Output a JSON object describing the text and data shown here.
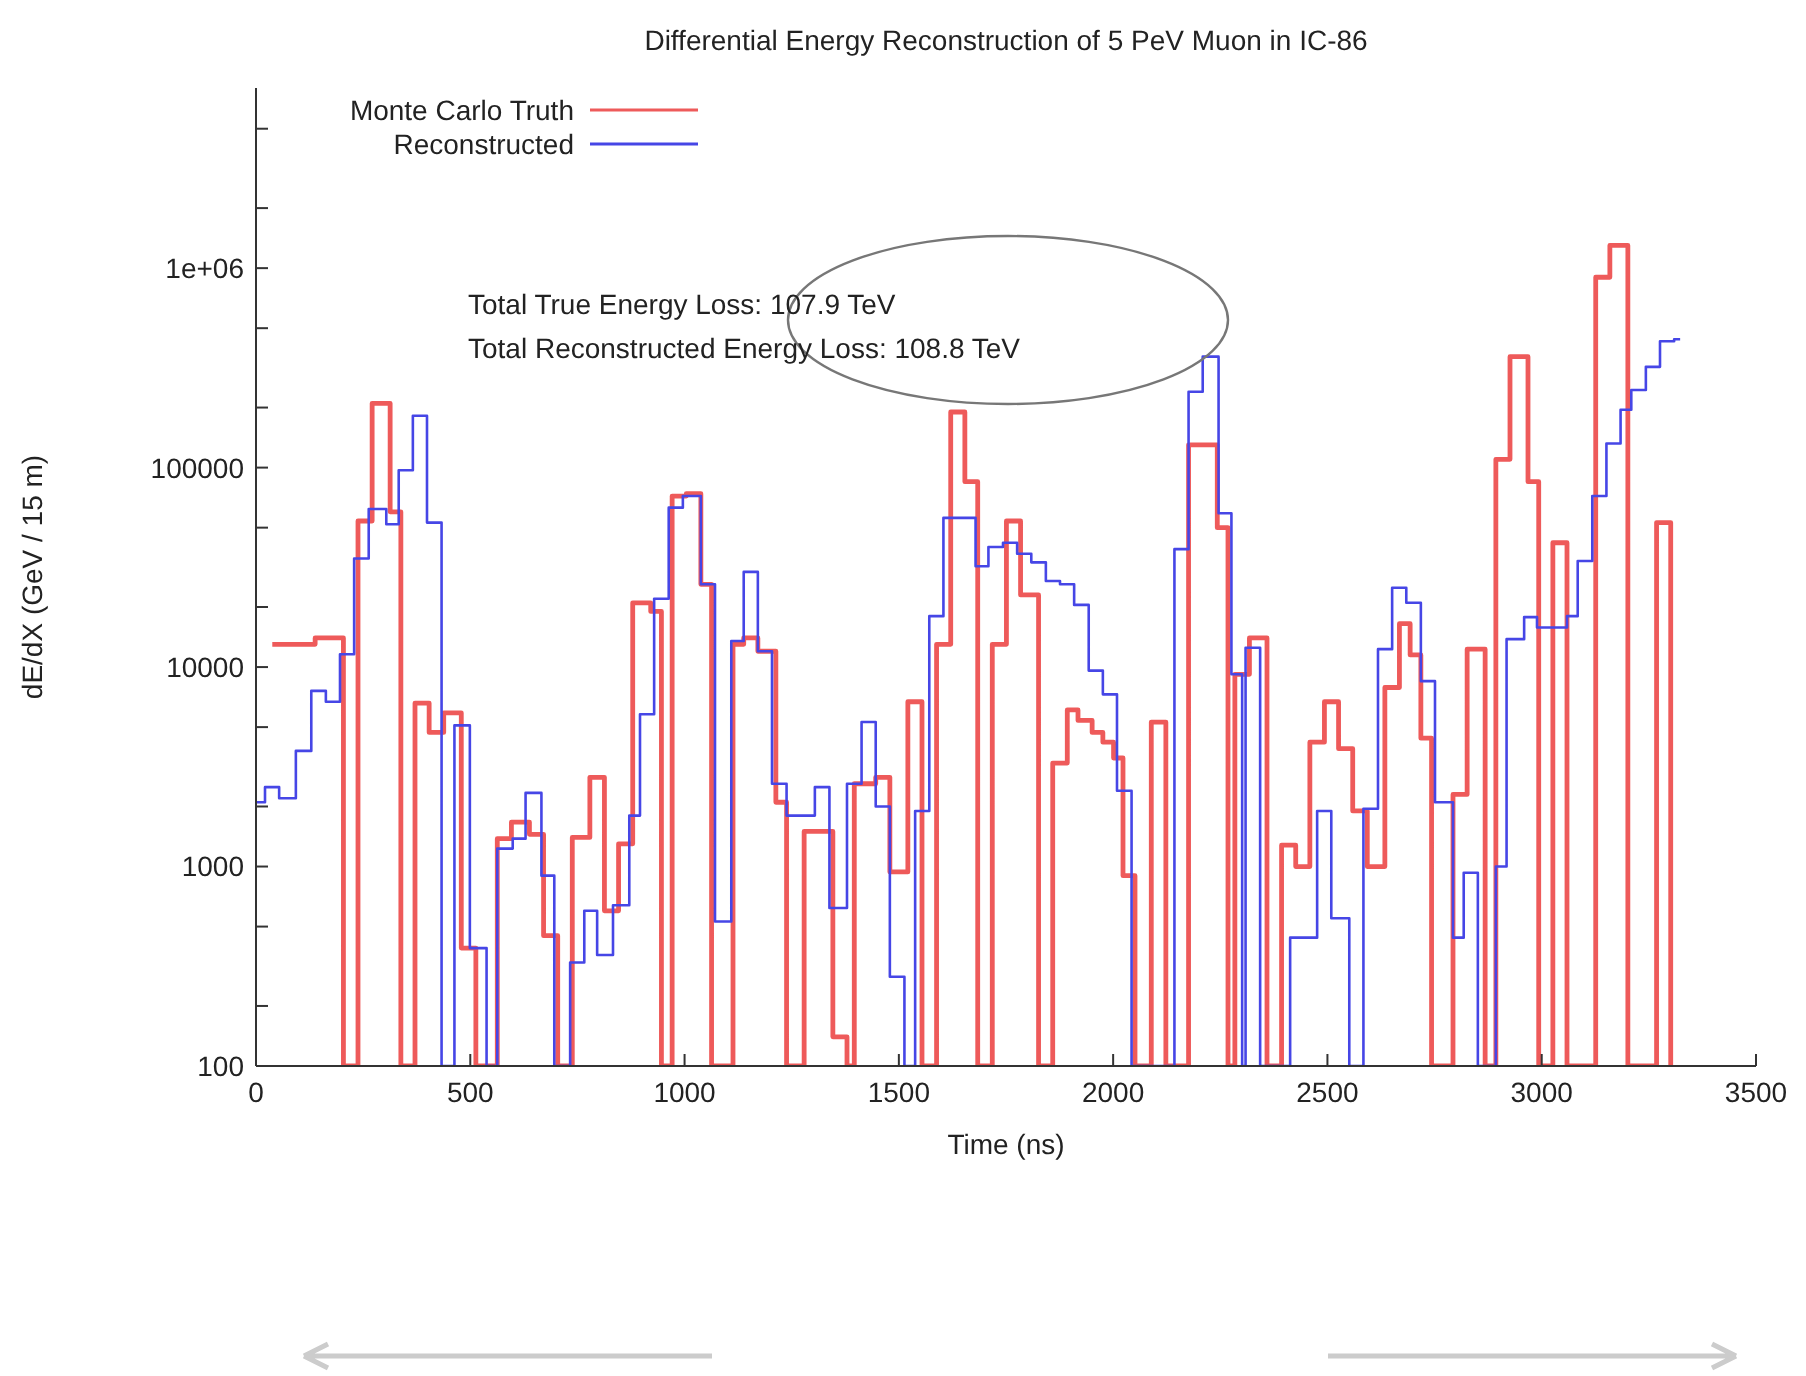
{
  "chart_data": {
    "type": "step",
    "title": "Differential Energy Reconstruction of 5 PeV Muon in IC-86",
    "xlabel": "Time (ns)",
    "ylabel": "dE/dX (GeV / 15 m)",
    "xlim": [
      0,
      3500
    ],
    "xticks": [
      0,
      500,
      1000,
      1500,
      2000,
      2500,
      3000,
      3500
    ],
    "ylim": [
      100,
      8000000
    ],
    "yticks": [
      100,
      {
        "value": 200,
        "label": null
      },
      {
        "value": 500,
        "label": null
      },
      1000,
      {
        "value": 2000,
        "label": null
      },
      {
        "value": 5000,
        "label": null
      },
      10000,
      {
        "value": 20000,
        "label": null
      },
      {
        "value": 50000,
        "label": null
      },
      100000,
      {
        "value": 200000,
        "label": null
      },
      {
        "value": 500000,
        "label": null
      },
      {
        "value": 1000000,
        "label": "1e+06"
      },
      {
        "value": 2000000,
        "label": null
      },
      {
        "value": 5000000,
        "label": null
      }
    ],
    "log": "y",
    "grid": false,
    "legend": "top left",
    "marker": "none",
    "line_style": "solid",
    "annotations": [
      "Total True Energy Loss: 107.9 TeV",
      "Total Reconstructed Energy Loss: 108.8 TeV"
    ],
    "series": [
      {
        "name": "Monte Carlo Truth",
        "color": "#ee5a5a",
        "x": [
          38,
          138,
          204,
          238,
          271,
          313,
          338,
          371,
          404,
          438,
          479,
          513,
          563,
          596,
          638,
          671,
          704,
          738,
          779,
          813,
          846,
          879,
          921,
          946,
          971,
          1004,
          1038,
          1063,
          1113,
          1138,
          1171,
          1213,
          1238,
          1279,
          1346,
          1379,
          1396,
          1446,
          1479,
          1521,
          1554,
          1588,
          1621,
          1654,
          1684,
          1718,
          1751,
          1784,
          1826,
          1859,
          1893,
          1918,
          1951,
          1976,
          2001,
          2023,
          2051,
          2089,
          2123,
          2176,
          2243,
          2268,
          2284,
          2318,
          2359,
          2393,
          2426,
          2459,
          2493,
          2526,
          2559,
          2593,
          2634,
          2668,
          2693,
          2718,
          2743,
          2793,
          2826,
          2868,
          2893,
          2926,
          2968,
          2993,
          3026,
          3059,
          3126,
          3159,
          3201,
          3268,
          3301
        ],
        "values": [
          13000,
          14000,
          100,
          54000,
          210000,
          60000,
          100,
          6600,
          4700,
          5900,
          390,
          100,
          1380,
          1670,
          1450,
          450,
          100,
          1400,
          2800,
          600,
          1300,
          21000,
          19000,
          100,
          72000,
          74000,
          26000,
          100,
          13000,
          14000,
          12000,
          2100,
          100,
          1500,
          140,
          100,
          2600,
          2800,
          940,
          6700,
          100,
          13000,
          190000,
          85000,
          100,
          13000,
          54000,
          23000,
          100,
          3300,
          6100,
          5400,
          4700,
          4200,
          3500,
          900,
          100,
          5300,
          100,
          130000,
          50000,
          100,
          9200,
          14000,
          100,
          1280,
          1000,
          4200,
          6700,
          3900,
          1900,
          1000,
          7900,
          16500,
          11500,
          4400,
          100,
          2300,
          12300,
          100,
          110000,
          360000,
          85000,
          100,
          42000,
          100,
          900000,
          1300000,
          100,
          53000,
          100
        ]
      },
      {
        "name": "Reconstructed",
        "color": "#4646e6",
        "x": [
          0,
          21,
          54,
          93,
          129,
          163,
          196,
          229,
          263,
          304,
          333,
          366,
          399,
          433,
          463,
          499,
          538,
          563,
          599,
          629,
          666,
          696,
          733,
          766,
          796,
          833,
          871,
          896,
          929,
          963,
          996,
          1038,
          1071,
          1109,
          1138,
          1171,
          1204,
          1238,
          1304,
          1338,
          1379,
          1413,
          1446,
          1479,
          1513,
          1538,
          1571,
          1604,
          1679,
          1709,
          1743,
          1776,
          1809,
          1843,
          1876,
          1909,
          1943,
          1976,
          2009,
          2043,
          2143,
          2176,
          2209,
          2246,
          2276,
          2301,
          2309,
          2343,
          2413,
          2476,
          2509,
          2551,
          2584,
          2618,
          2651,
          2684,
          2718,
          2751,
          2793,
          2818,
          2851,
          2893,
          2918,
          2959,
          2989,
          3059,
          3084,
          3118,
          3151,
          3184,
          3209,
          3243,
          3276,
          3309,
          3323
        ],
        "values": [
          2100,
          2500,
          2200,
          3800,
          7600,
          6700,
          11600,
          35000,
          62000,
          52000,
          97000,
          182000,
          53000,
          100,
          5100,
          390,
          100,
          1230,
          1380,
          2340,
          900,
          100,
          330,
          600,
          360,
          640,
          1800,
          5800,
          22000,
          63000,
          72000,
          26000,
          530,
          13500,
          30000,
          12000,
          2600,
          1800,
          2500,
          620,
          2600,
          5300,
          2000,
          280,
          100,
          1900,
          18000,
          56000,
          32000,
          40000,
          42000,
          37000,
          33500,
          27000,
          26000,
          20500,
          9600,
          7300,
          2400,
          100,
          39000,
          240000,
          360000,
          59000,
          9200,
          100,
          12500,
          100,
          440,
          1900,
          550,
          100,
          1950,
          12300,
          25000,
          21000,
          8500,
          2100,
          440,
          930,
          100,
          1000,
          13800,
          17800,
          15800,
          18000,
          34000,
          72000,
          132000,
          195000,
          245000,
          320000,
          430000,
          440000,
          440000
        ]
      }
    ]
  }
}
